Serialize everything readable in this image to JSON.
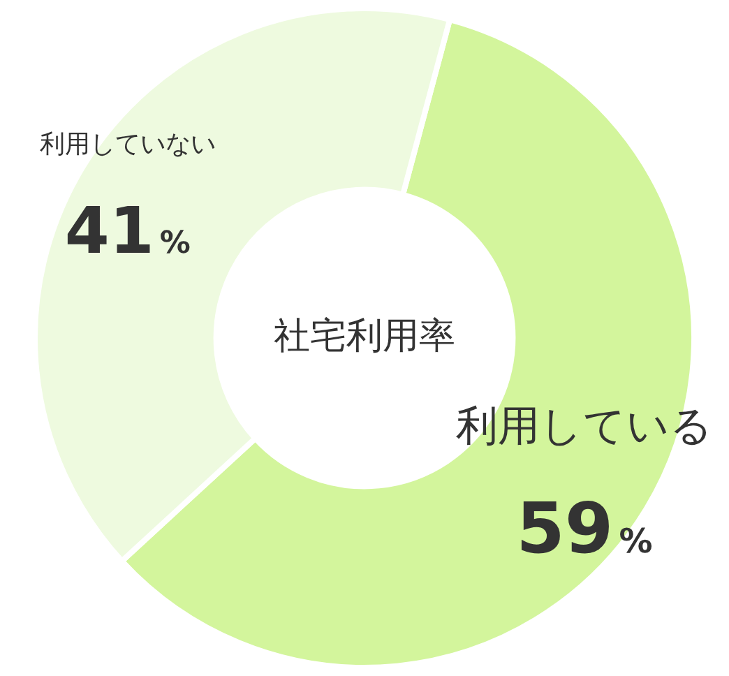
{
  "chart_data": {
    "type": "donut",
    "title": "社宅利用率",
    "categories": [
      "利用している",
      "利用していない"
    ],
    "values": [
      59,
      41
    ],
    "value_labels": [
      "59%",
      "41%"
    ],
    "colors": [
      "#d3f59c",
      "#eefadf"
    ]
  }
}
